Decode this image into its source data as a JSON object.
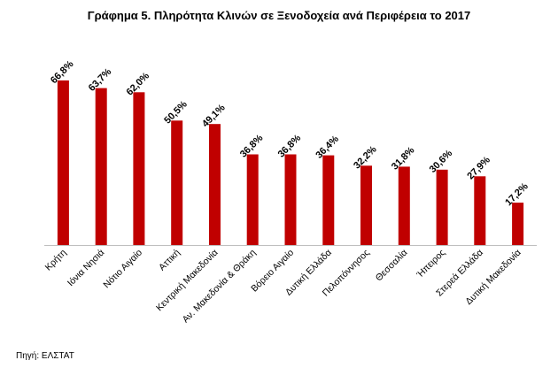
{
  "chart_data": {
    "type": "bar",
    "title": "Γράφημα 5.  Πληρότητα Κλινών σε Ξενοδοχεία ανά Περιφέρεια το 2017",
    "categories": [
      "Κρήτη",
      "Ιόνια Νησιά",
      "Νότιο Αιγαίο",
      "Αττική",
      "Κεντρική Μακεδονία",
      "Αν. Μακεδονία & Θράκη",
      "Βόρειο Αιγαίο",
      "Δυτική Ελλάδα",
      "Πελοπόννησος",
      "Θεσσαλία",
      "Ήπειρος",
      "Στερεά Ελλάδα",
      "Δυτική Μακεδονία"
    ],
    "values": [
      66.8,
      63.7,
      62.0,
      50.5,
      49.1,
      36.8,
      36.8,
      36.4,
      32.2,
      31.8,
      30.6,
      27.9,
      17.2
    ],
    "data_labels": [
      "66,8%",
      "63,7%",
      "62,0%",
      "50,5%",
      "49,1%",
      "36,8%",
      "36,8%",
      "36,4%",
      "32,2%",
      "31,8%",
      "30,6%",
      "27,9%",
      "17,2%"
    ],
    "bar_color": "#c00000",
    "ylim": [
      0,
      70
    ],
    "grid": false,
    "xlabel": "",
    "ylabel": ""
  },
  "source": "Πηγή: ΕΛΣΤΑΤ"
}
